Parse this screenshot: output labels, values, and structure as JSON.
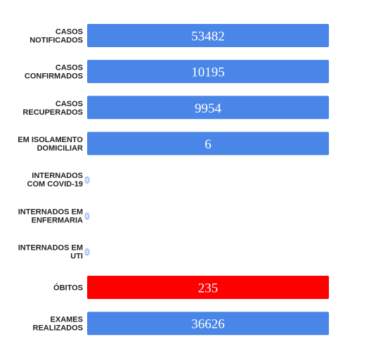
{
  "chart_data": {
    "type": "bar",
    "orientation": "horizontal",
    "categories": [
      [
        "CASOS",
        "NOTIFICADOS"
      ],
      [
        "CASOS",
        "CONFIRMADOS"
      ],
      [
        "CASOS",
        "RECUPERADOS"
      ],
      [
        "EM ISOLAMENTO",
        "DOMICILIAR"
      ],
      [
        "INTERNADOS",
        "COM COVID-19"
      ],
      [
        "INTERNADOS EM",
        "ENFERMARIA"
      ],
      [
        "INTERNADOS EM",
        "UTI"
      ],
      [
        "ÓBITOS"
      ],
      [
        "EXAMES",
        "REALIZADOS"
      ]
    ],
    "values": [
      53482,
      10195,
      9954,
      6,
      0,
      0,
      0,
      235,
      36626
    ],
    "value_labels": [
      "53482",
      "10195",
      "9954",
      "6",
      "0",
      "0",
      "0",
      "235",
      "36626"
    ],
    "colors": [
      "#4a86e8",
      "#4a86e8",
      "#4a86e8",
      "#4a86e8",
      "#4a86e8",
      "#4a86e8",
      "#4a86e8",
      "#ff0000",
      "#4a86e8"
    ],
    "title": "",
    "xlabel": "",
    "ylabel": "",
    "grid": false,
    "legend": "none"
  }
}
